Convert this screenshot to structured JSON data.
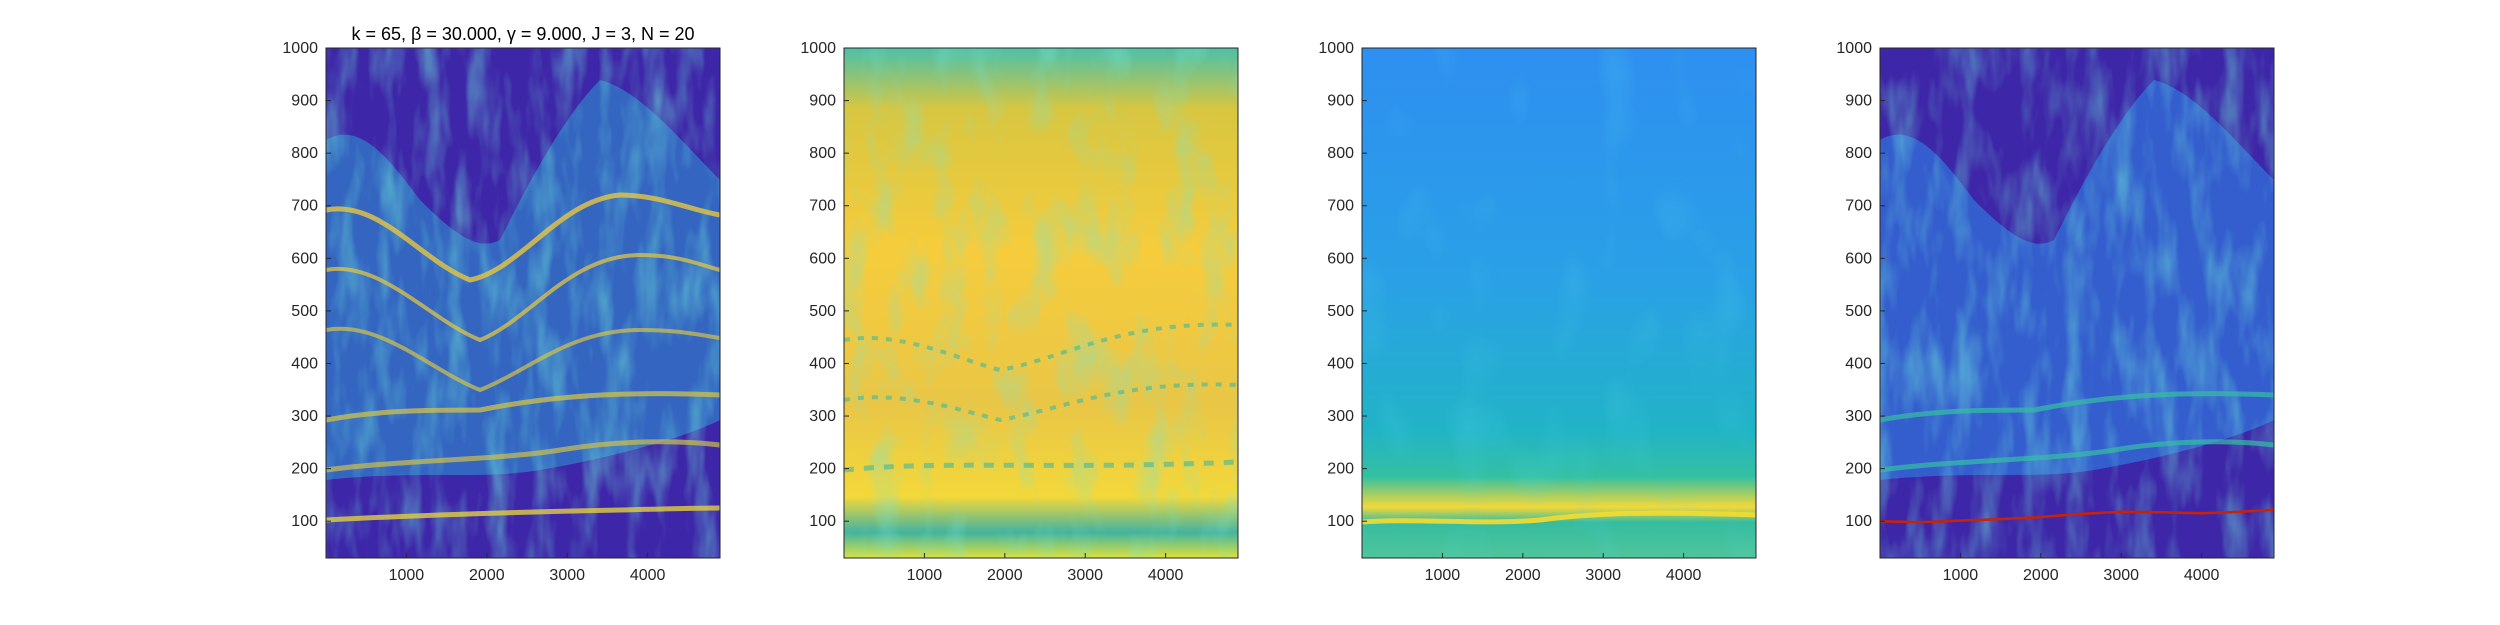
{
  "chart_data": [
    {
      "type": "heatmap",
      "title": "k = 65, β = 30.000, γ = 9.000, J = 3, N = 20",
      "xlabel": "",
      "ylabel": "",
      "xlim": [
        0,
        4900
      ],
      "ylim": [
        30,
        1000
      ],
      "xticks": [
        1000,
        2000,
        3000,
        4000
      ],
      "yticks": [
        100,
        200,
        300,
        400,
        500,
        600,
        700,
        800,
        900,
        1000
      ],
      "background_color": "#3e26a8",
      "colormap": "parula",
      "content": "sparse spectrogram with harmonic ridges",
      "grid": false
    },
    {
      "type": "heatmap",
      "title": "",
      "xlabel": "",
      "ylabel": "",
      "xlim": [
        0,
        4900
      ],
      "ylim": [
        30,
        1000
      ],
      "xticks": [
        1000,
        2000,
        3000,
        4000
      ],
      "yticks": [
        100,
        200,
        300,
        400,
        500,
        600,
        700,
        800,
        900,
        1000
      ],
      "background_color": "#f5c33a",
      "colormap": "parula",
      "content": "smoothed harmonic structure",
      "grid": false
    },
    {
      "type": "heatmap",
      "title": "",
      "xlabel": "",
      "ylabel": "",
      "xlim": [
        0,
        4900
      ],
      "ylim": [
        30,
        1000
      ],
      "xticks": [
        1000,
        2000,
        3000,
        4000
      ],
      "yticks": [
        100,
        200,
        300,
        400,
        500,
        600,
        700,
        800,
        900,
        1000
      ],
      "background_color": "#2fa6d8",
      "colormap": "parula",
      "content": "pitch salience with bright band near 100",
      "grid": false
    },
    {
      "type": "heatmap",
      "title": "",
      "xlabel": "",
      "ylabel": "",
      "xlim": [
        0,
        4900
      ],
      "ylim": [
        30,
        1000
      ],
      "xticks": [
        1000,
        2000,
        3000,
        4000
      ],
      "yticks": [
        100,
        200,
        300,
        400,
        500,
        600,
        700,
        800,
        900,
        1000
      ],
      "background_color": "#3e26a8",
      "colormap": "parula",
      "content": "spectrogram with estimated f0 track overlay",
      "grid": false,
      "overlay_line": {
        "color": "#cc2200",
        "x": [
          0,
          500,
          1000,
          1500,
          2000,
          2500,
          3000,
          3500,
          4000,
          4500,
          4900
        ],
        "y": [
          100,
          98,
          101,
          104,
          108,
          114,
          118,
          117,
          115,
          118,
          122
        ]
      }
    }
  ]
}
